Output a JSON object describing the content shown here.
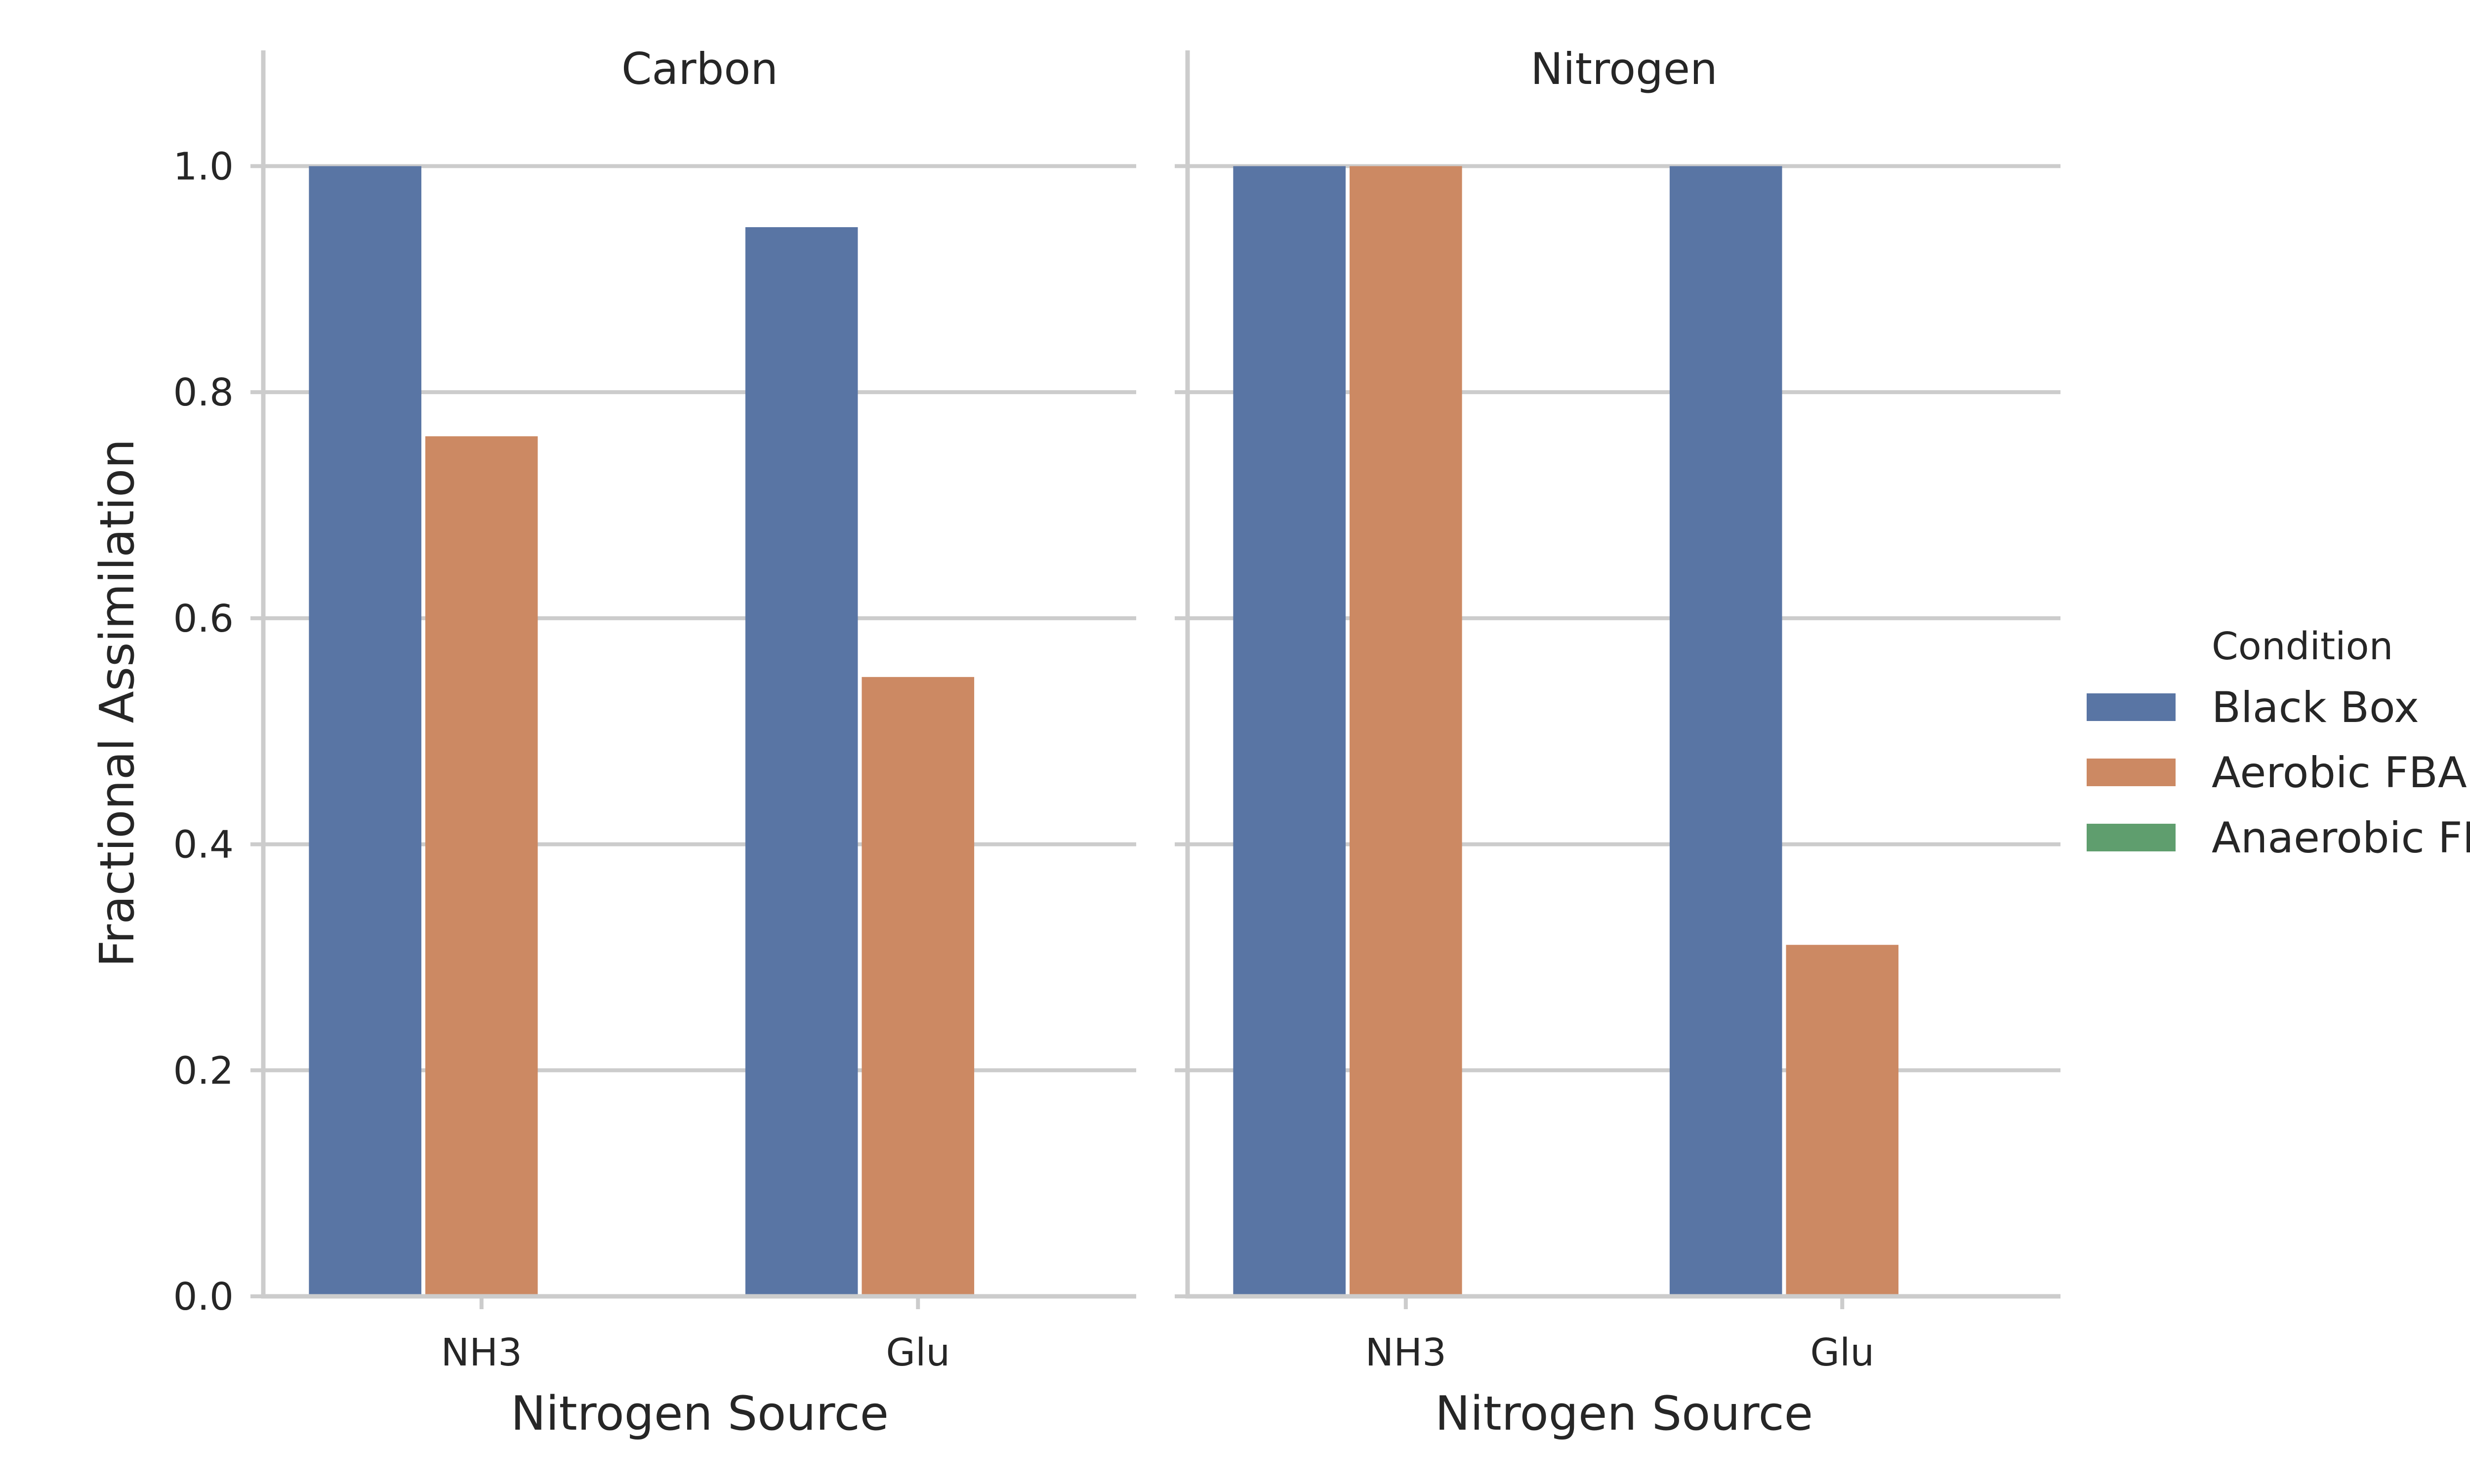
{
  "chart_data": {
    "type": "bar",
    "ylabel": "Fractional Assimilation",
    "ylim": [
      0,
      1.05
    ],
    "yticks": [
      0.0,
      0.2,
      0.4,
      0.6,
      0.8,
      1.0
    ],
    "yticks_text": [
      "0.0",
      "0.2",
      "0.4",
      "0.6",
      "0.8",
      "1.0"
    ],
    "grid": true,
    "legend": {
      "title": "Condition",
      "placement": "right",
      "entries": [
        {
          "name": "Black Box",
          "color": "#5975a4"
        },
        {
          "name": "Aerobic FBA",
          "color": "#cc8963"
        },
        {
          "name": "Anaerobic FBA",
          "color": "#5f9e6e"
        }
      ]
    },
    "facets": [
      {
        "title": "Carbon",
        "xlabel": "Nitrogen Source",
        "categories": [
          "NH3",
          "Glu"
        ],
        "series": [
          {
            "name": "Black Box",
            "values": [
              1.0,
              0.946
            ]
          },
          {
            "name": "Aerobic FBA",
            "values": [
              0.761,
              0.548
            ]
          },
          {
            "name": "Anaerobic FBA",
            "values": [
              0,
              0
            ]
          }
        ]
      },
      {
        "title": "Nitrogen",
        "xlabel": "Nitrogen Source",
        "categories": [
          "NH3",
          "Glu"
        ],
        "series": [
          {
            "name": "Black Box",
            "values": [
              1.0,
              1.0
            ]
          },
          {
            "name": "Aerobic FBA",
            "values": [
              1.0,
              0.311
            ]
          },
          {
            "name": "Anaerobic FBA",
            "values": [
              0,
              0
            ]
          }
        ]
      }
    ]
  }
}
